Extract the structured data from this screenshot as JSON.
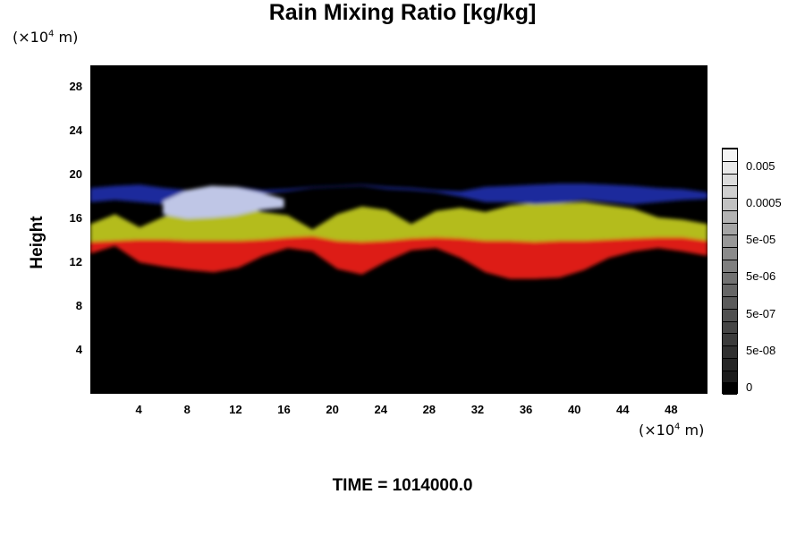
{
  "title": "Rain Mixing Ratio [kg/kg]",
  "y_unit": {
    "prefix": "(×10",
    "exp": "4",
    "suffix": " m)"
  },
  "x_unit": {
    "prefix": "(×10",
    "exp": "4",
    "suffix": " m)"
  },
  "footer": "TIME = 1014000.0",
  "chart_data": {
    "type": "heatmap",
    "title": "Rain Mixing Ratio [kg/kg]",
    "xlabel": "",
    "ylabel": "Height",
    "xlim": [
      0,
      51
    ],
    "ylim": [
      0,
      30
    ],
    "x_ticks": [
      4,
      8,
      12,
      16,
      20,
      24,
      28,
      32,
      36,
      40,
      44,
      48
    ],
    "y_ticks": [
      4,
      8,
      12,
      16,
      20,
      24,
      28
    ],
    "colorbar": {
      "labels": [
        "0",
        "5e-08",
        "5e-07",
        "5e-06",
        "5e-05",
        "0.0005",
        "0.005"
      ],
      "colors": [
        "#000000",
        "#1b1b1b",
        "#262626",
        "#303030",
        "#3b3b3b",
        "#454545",
        "#505050",
        "#5b5b5b",
        "#666666",
        "#727272",
        "#7f7f7f",
        "#8b8b8b",
        "#989898",
        "#a5a5a5",
        "#b3b3b3",
        "#c1c1c1",
        "#cfcfcf",
        "#dcdcdc",
        "#e9e9e9",
        "#f5f5f5"
      ]
    },
    "layers": [
      {
        "color": "#dd1a12",
        "bottom": [
          12.8,
          13.5,
          12.0,
          11.6,
          11.3,
          11.1,
          11.5,
          12.6,
          13.3,
          13.0,
          11.4,
          10.9,
          12.1,
          13.1,
          13.3,
          12.4,
          11.1,
          10.5,
          10.5,
          10.6,
          11.3,
          12.4,
          13.0,
          13.3,
          13.0,
          12.6
        ],
        "top": [
          14.2,
          14.5,
          14.4,
          14.3,
          14.3,
          14.1,
          14.0,
          14.2,
          14.4,
          14.4,
          14.3,
          14.1,
          14.3,
          14.5,
          14.6,
          14.5,
          14.4,
          14.3,
          14.2,
          14.2,
          14.3,
          14.4,
          14.5,
          14.6,
          14.6,
          14.4
        ]
      },
      {
        "color": "#b4bc1c",
        "bottom": [
          13.9,
          14.0,
          14.1,
          14.1,
          14.0,
          14.0,
          14.0,
          14.1,
          14.3,
          14.4,
          14.0,
          13.9,
          14.0,
          14.2,
          14.3,
          14.2,
          14.0,
          14.0,
          13.9,
          14.0,
          14.0,
          14.1,
          14.2,
          14.3,
          14.3,
          14.0
        ],
        "top": [
          15.5,
          16.4,
          15.2,
          16.2,
          17.3,
          17.6,
          17.2,
          16.6,
          16.3,
          15.0,
          16.4,
          17.1,
          16.8,
          15.5,
          16.7,
          17.0,
          16.6,
          17.2,
          17.4,
          17.4,
          17.5,
          17.2,
          16.9,
          16.1,
          15.9,
          15.5
        ]
      },
      {
        "color": "#1a2a9c",
        "bottom": [
          17.5,
          17.7,
          17.5,
          17.3,
          17.9,
          18.6,
          18.5,
          18.3,
          18.5,
          18.8,
          18.9,
          19.0,
          18.7,
          18.6,
          18.4,
          18.0,
          17.5,
          17.5,
          17.3,
          17.4,
          17.7,
          17.5,
          17.3,
          17.5,
          17.7,
          17.8
        ],
        "top": [
          18.8,
          19.0,
          19.1,
          18.8,
          18.6,
          18.9,
          18.9,
          18.6,
          18.7,
          18.9,
          19.0,
          19.1,
          18.9,
          18.8,
          18.6,
          18.5,
          18.9,
          19.0,
          19.1,
          19.2,
          19.2,
          19.1,
          19.0,
          18.8,
          18.7,
          18.4
        ]
      },
      {
        "color": "#c8cde8",
        "bottom": [
          0,
          0,
          0,
          0,
          0,
          0,
          0,
          0,
          0,
          0,
          0,
          0,
          0,
          0,
          0,
          0,
          0,
          0,
          0,
          0,
          0,
          0,
          0,
          0,
          0,
          0
        ],
        "top": [
          0,
          0,
          0,
          0,
          0,
          0,
          0,
          0,
          0,
          0,
          0,
          0,
          0,
          0,
          0,
          0,
          0,
          0,
          0,
          0,
          0,
          0,
          0,
          0,
          0,
          0
        ]
      }
    ],
    "highlight": {
      "color": "#bfc6e6",
      "x": [
        6,
        8,
        10,
        12,
        14,
        16
      ],
      "bottom": [
        16.4,
        16.0,
        16.1,
        16.3,
        16.8,
        17.0
      ],
      "top": [
        17.6,
        18.6,
        19.0,
        18.9,
        18.4,
        17.8
      ]
    }
  }
}
